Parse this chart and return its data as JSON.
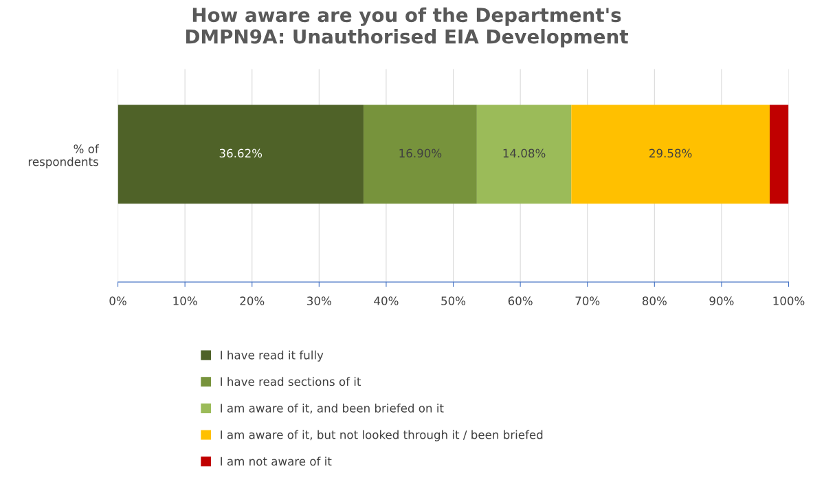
{
  "chart_data": {
    "type": "bar",
    "orientation": "horizontal",
    "stacked": true,
    "title": "How aware are you of the Department's\nDMPN9A: Unauthorised EIA Development",
    "categories": [
      "% of\nrespondents"
    ],
    "series": [
      {
        "name": "I have read it fully",
        "color": "#4f6228",
        "values": [
          36.62
        ],
        "value_labels": [
          "36.62%"
        ]
      },
      {
        "name": "I have read sections of it",
        "color": "#77933c",
        "values": [
          16.9
        ],
        "value_labels": [
          "16.90%"
        ]
      },
      {
        "name": "I am aware of it, and been briefed on it",
        "color": "#9bbb59",
        "values": [
          14.08
        ],
        "value_labels": [
          "14.08%"
        ]
      },
      {
        "name": "I am aware of it, but not looked through it / been briefed",
        "color": "#ffc000",
        "values": [
          29.58
        ],
        "value_labels": [
          "29.58%"
        ]
      },
      {
        "name": "I am not aware of it",
        "color": "#c00000",
        "values": [
          2.8
        ],
        "value_labels": [
          null
        ]
      }
    ],
    "xlim": [
      0,
      100
    ],
    "xticks": [
      {
        "value": 0,
        "label": "0%"
      },
      {
        "value": 10,
        "label": "10%"
      },
      {
        "value": 20,
        "label": "20%"
      },
      {
        "value": 30,
        "label": "30%"
      },
      {
        "value": 40,
        "label": "40%"
      },
      {
        "value": 50,
        "label": "50%"
      },
      {
        "value": 60,
        "label": "60%"
      },
      {
        "value": 70,
        "label": "70%"
      },
      {
        "value": 80,
        "label": "80%"
      },
      {
        "value": 90,
        "label": "90%"
      },
      {
        "value": 100,
        "label": "100%"
      }
    ],
    "grid": "x",
    "legend": "bottom"
  }
}
